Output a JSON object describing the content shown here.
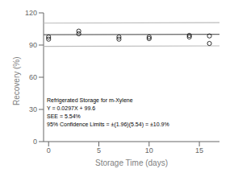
{
  "chart_data": {
    "type": "scatter",
    "annotations": [
      "Refrigerated Storage for m-Xylene",
      "Y = 0.0297X + 99.6",
      "SEE = 5.54%",
      "95% Confidence Limits = ±(1.96)(5.54) = ±10.9%"
    ],
    "xlabel": "Storage Time (days)",
    "ylabel": "Recovery (%)",
    "xlim": [
      -0.5,
      17.0
    ],
    "ylim": [
      0,
      120
    ],
    "xticks": [
      0,
      5,
      10,
      15
    ],
    "yticks": [
      0,
      30,
      60,
      90,
      120
    ],
    "grid": false,
    "series": [
      {
        "type": "line",
        "color": "#666666",
        "line_style": "solid",
        "x": [
          -0.5,
          17.0
        ],
        "values": [
          99.58515,
          100.1049
        ]
      },
      {
        "type": "line",
        "color": "#bbbbbb",
        "line_style": "solid",
        "x": [
          -0.5,
          17.0
        ],
        "values": [
          110.44355,
          110.9633
        ]
      },
      {
        "type": "line",
        "color": "#bbbbbb",
        "line_style": "solid",
        "x": [
          -0.5,
          17.0
        ],
        "values": [
          88.72675,
          89.2465
        ]
      },
      {
        "type": "scatter",
        "color": "#000000",
        "marker": "circle",
        "x": [
          0,
          0,
          3,
          3,
          7,
          7,
          10,
          10,
          14,
          14,
          16,
          16
        ],
        "values": [
          95.5,
          97.5,
          100.5,
          103,
          95.5,
          97.5,
          96,
          97.5,
          97.5,
          99,
          98.5,
          91.5
        ]
      }
    ]
  }
}
